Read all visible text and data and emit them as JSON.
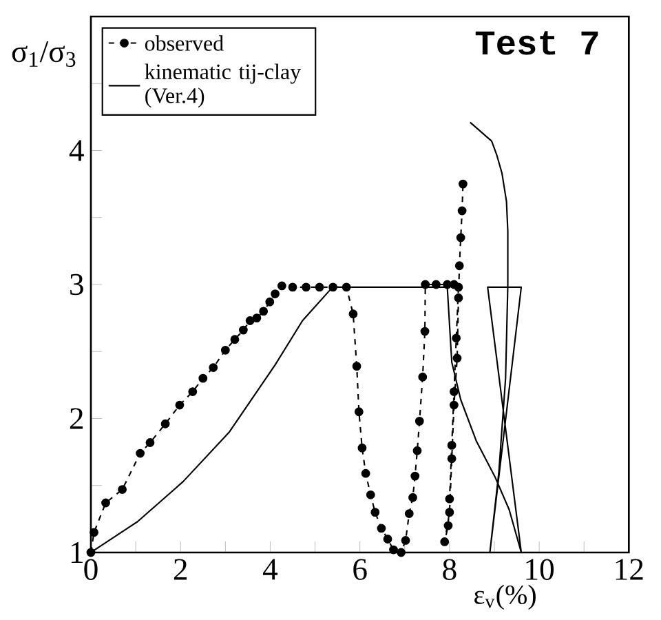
{
  "chart_data": {
    "type": "line",
    "title": "Test 7",
    "xlabel": "ε$_{v}$(%)",
    "ylabel": "σ$_{1}$/σ$_{3}$",
    "xlim": [
      0,
      12
    ],
    "ylim": [
      1,
      5
    ],
    "xticks": [
      0,
      {
        "value": 1,
        "label": null
      },
      2,
      {
        "value": 3,
        "label": null
      },
      4,
      {
        "value": 5,
        "label": null
      },
      6,
      {
        "value": 7,
        "label": null
      },
      8,
      {
        "value": 9,
        "label": null
      },
      10,
      {
        "value": 11,
        "label": null
      },
      12
    ],
    "yticks": [
      1,
      {
        "value": 1.5,
        "label": null
      },
      2,
      {
        "value": 2.5,
        "label": null
      },
      3,
      {
        "value": 3.5,
        "label": null
      },
      4,
      {
        "value": 4.5,
        "label": null
      }
    ],
    "grid": false,
    "legend": "top left",
    "series": [
      {
        "name": "observed",
        "color": "#000000",
        "marker": "circle",
        "line_style": "dashed",
        "x": [
          0,
          0.07,
          0.33,
          0.7,
          1.1,
          1.32,
          1.66,
          1.98,
          2.27,
          2.5,
          2.73,
          3.0,
          3.21,
          3.4,
          3.55,
          3.7,
          3.85,
          3.99,
          4.11,
          4.26,
          4.5,
          4.8,
          5.1,
          5.4,
          5.7,
          5.85,
          5.93,
          5.98,
          6.05,
          6.13,
          6.24,
          6.34,
          6.48,
          6.62,
          6.75,
          6.92,
          7.02,
          7.1,
          7.18,
          7.23,
          7.28,
          7.33,
          7.4,
          7.45,
          7.46,
          7.7,
          7.95,
          8.1,
          8.2,
          8.15,
          8.1,
          8.05,
          8.0,
          7.97,
          7.89,
          8.0,
          8.05,
          8.1,
          8.17,
          8.2,
          8.22,
          8.25,
          8.28,
          8.3
        ],
        "values": [
          1.0,
          1.15,
          1.37,
          1.47,
          1.74,
          1.82,
          1.96,
          2.1,
          2.2,
          2.3,
          2.38,
          2.51,
          2.59,
          2.66,
          2.73,
          2.75,
          2.8,
          2.87,
          2.93,
          2.99,
          2.98,
          2.98,
          2.98,
          2.98,
          2.98,
          2.78,
          2.39,
          2.05,
          1.78,
          1.59,
          1.43,
          1.3,
          1.18,
          1.1,
          1.02,
          1.0,
          1.09,
          1.29,
          1.41,
          1.57,
          1.76,
          1.98,
          2.31,
          2.65,
          3.0,
          3.0,
          3.0,
          3.0,
          2.98,
          2.6,
          2.2,
          1.8,
          1.4,
          1.2,
          1.08,
          1.3,
          1.7,
          2.1,
          2.45,
          2.9,
          3.14,
          3.35,
          3.55,
          3.75
        ]
      },
      {
        "name": "kinematic tij-clay (Ver.4)",
        "color": "#000000",
        "marker": "none",
        "line_style": "solid",
        "x": [
          0,
          1.04,
          2.06,
          3.09,
          4.11,
          4.72,
          5.39,
          6.5,
          7.95,
          8.05,
          8.25,
          8.6,
          9.02,
          9.33,
          9.6,
          8.85,
          9.6,
          8.9,
          9.1,
          9.25,
          9.3,
          9.3,
          9.27,
          9.17,
          9.05,
          8.94,
          8.46
        ],
        "values": [
          1.0,
          1.23,
          1.53,
          1.9,
          2.4,
          2.73,
          2.98,
          2.98,
          2.98,
          2.42,
          2.14,
          1.83,
          1.56,
          1.32,
          1.0,
          2.98,
          2.98,
          1.0,
          1.6,
          2.3,
          2.99,
          3.4,
          3.62,
          3.83,
          3.97,
          4.07,
          4.21
        ]
      }
    ]
  }
}
